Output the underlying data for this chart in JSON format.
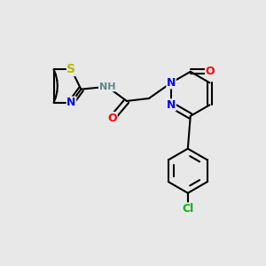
{
  "background_color": "#e8e8e8",
  "atom_colors": {
    "S": "#b8b800",
    "N": "#0000ff",
    "O": "#ff0000",
    "Cl": "#00bb00",
    "H": "#5a8a8a",
    "C": "#000000"
  },
  "bond_color": "#000000",
  "bond_width": 1.5,
  "fig_width": 3.0,
  "fig_height": 3.0,
  "dpi": 100
}
